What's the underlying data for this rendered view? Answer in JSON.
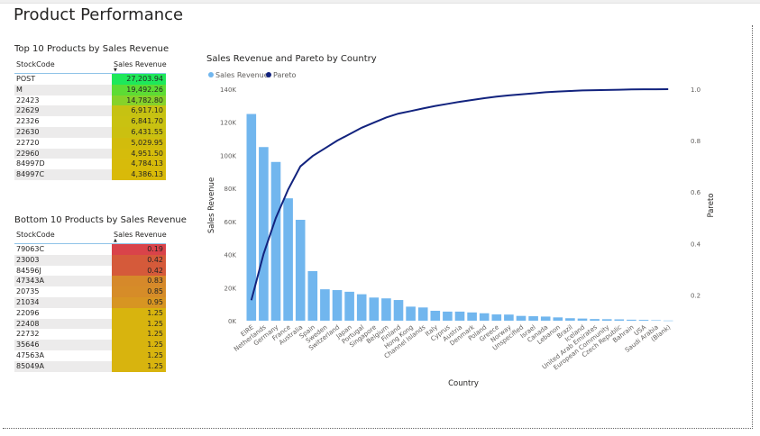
{
  "page": {
    "title": "Product Performance"
  },
  "top_table": {
    "title": "Top 10 Products by Sales Revenue",
    "col_code": "StockCode",
    "col_revenue": "Sales Revenue",
    "sort_icon": "sort-down-icon",
    "rows": [
      {
        "code": "POST",
        "revenue": "27,203.94",
        "color": "#1ee85a"
      },
      {
        "code": "M",
        "revenue": "19,492.26",
        "color": "#5ddc34"
      },
      {
        "code": "22423",
        "revenue": "14,782.80",
        "color": "#86d22a"
      },
      {
        "code": "22629",
        "revenue": "6,917.10",
        "color": "#c6c212"
      },
      {
        "code": "22326",
        "revenue": "6,841.70",
        "color": "#c9c211"
      },
      {
        "code": "22630",
        "revenue": "6,431.55",
        "color": "#cbc010"
      },
      {
        "code": "22720",
        "revenue": "5,029.95",
        "color": "#d2bc0c"
      },
      {
        "code": "22960",
        "revenue": "4,951.50",
        "color": "#d5bc0b"
      },
      {
        "code": "84997D",
        "revenue": "4,784.13",
        "color": "#d7bb0a"
      },
      {
        "code": "84997C",
        "revenue": "4,386.13",
        "color": "#d9ba09"
      }
    ]
  },
  "bottom_table": {
    "title": "Bottom 10 Products by Sales Revenue",
    "col_code": "StockCode",
    "col_revenue": "Sales Revenue",
    "sort_icon": "sort-up-icon",
    "rows": [
      {
        "code": "79063C",
        "revenue": "0.19",
        "color": "#d9434a"
      },
      {
        "code": "23003",
        "revenue": "0.42",
        "color": "#d55a3a"
      },
      {
        "code": "84596J",
        "revenue": "0.42",
        "color": "#d55a3a"
      },
      {
        "code": "47343A",
        "revenue": "0.83",
        "color": "#d6892a"
      },
      {
        "code": "20735",
        "revenue": "0.85",
        "color": "#d68c28"
      },
      {
        "code": "21034",
        "revenue": "0.95",
        "color": "#d79522"
      },
      {
        "code": "22096",
        "revenue": "1.25",
        "color": "#d8b40e"
      },
      {
        "code": "22408",
        "revenue": "1.25",
        "color": "#d8b40e"
      },
      {
        "code": "22732",
        "revenue": "1.25",
        "color": "#d8b40e"
      },
      {
        "code": "35646",
        "revenue": "1.25",
        "color": "#d8b40e"
      },
      {
        "code": "47563A",
        "revenue": "1.25",
        "color": "#d8b40e"
      },
      {
        "code": "85049A",
        "revenue": "1.25",
        "color": "#d8b40e"
      }
    ]
  },
  "chart_data": {
    "type": "bar",
    "title": "Sales Revenue and Pareto by Country",
    "xlabel": "Country",
    "ylabel": "Sales Revenue",
    "y2label": "Pareto",
    "ylim": [
      0,
      140000
    ],
    "y2lim": [
      0.1,
      1.0
    ],
    "y_ticks": [
      {
        "v": 0,
        "label": "0K"
      },
      {
        "v": 20000,
        "label": "20K"
      },
      {
        "v": 40000,
        "label": "40K"
      },
      {
        "v": 60000,
        "label": "60K"
      },
      {
        "v": 80000,
        "label": "80K"
      },
      {
        "v": 100000,
        "label": "100K"
      },
      {
        "v": 120000,
        "label": "120K"
      },
      {
        "v": 140000,
        "label": "140K"
      }
    ],
    "y2_ticks": [
      {
        "v": 0.2,
        "label": "0.2"
      },
      {
        "v": 0.4,
        "label": "0.4"
      },
      {
        "v": 0.6,
        "label": "0.6"
      },
      {
        "v": 0.8,
        "label": "0.8"
      },
      {
        "v": 1.0,
        "label": "1.0"
      }
    ],
    "legend_position": "top-left",
    "grid": false,
    "bar_color": "#71b6ee",
    "line_color": "#12237e",
    "categories": [
      "EIRE",
      "Netherlands",
      "Germany",
      "France",
      "Australia",
      "Spain",
      "Sweden",
      "Switzerland",
      "Japan",
      "Portugal",
      "Singapore",
      "Belgium",
      "Finland",
      "Hong Kong",
      "Channel Islands",
      "Italy",
      "Cyprus",
      "Austria",
      "Denmark",
      "Poland",
      "Greece",
      "Norway",
      "Unspecified",
      "Israel",
      "Canada",
      "Lebanon",
      "Brazil",
      "Iceland",
      "United Arab Emirates",
      "European Community",
      "Czech Republic",
      "Bahrain",
      "USA",
      "Saudi Arabia",
      "(Blank)"
    ],
    "series": [
      {
        "name": "Sales Revenue",
        "type": "bar",
        "values": [
          125000,
          105000,
          96000,
          74000,
          61000,
          30000,
          19000,
          18500,
          17500,
          16000,
          14000,
          13500,
          12500,
          8500,
          8000,
          6000,
          5500,
          5500,
          5000,
          4500,
          3800,
          3700,
          2900,
          2700,
          2500,
          2000,
          1500,
          1300,
          1000,
          900,
          800,
          600,
          500,
          300,
          100
        ]
      },
      {
        "name": "Pareto",
        "type": "line",
        "values": [
          0.18,
          0.36,
          0.5,
          0.61,
          0.7,
          0.74,
          0.77,
          0.8,
          0.825,
          0.85,
          0.87,
          0.89,
          0.905,
          0.915,
          0.925,
          0.935,
          0.943,
          0.951,
          0.958,
          0.965,
          0.971,
          0.976,
          0.98,
          0.984,
          0.988,
          0.991,
          0.993,
          0.995,
          0.996,
          0.997,
          0.998,
          0.999,
          0.9995,
          0.9998,
          1.0
        ]
      }
    ]
  }
}
